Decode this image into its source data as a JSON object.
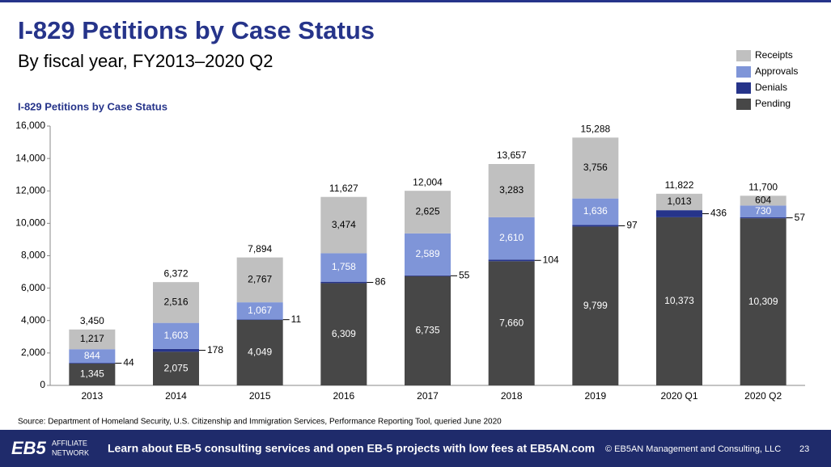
{
  "slide": {
    "title": "I-829 Petitions by Case Status",
    "subtitle": "By fiscal year, FY2013–2020 Q2",
    "source": "Source: Department of Homeland Security, U.S. Citizenship and Immigration Services, Performance Reporting Tool, queried June 2020",
    "logo_main": "EB5",
    "logo_top": "AFFILIATE",
    "logo_bottom": "NETWORK",
    "footer_text": "Learn about EB-5 consulting services and open EB-5 projects with low fees at EB5AN.com",
    "copyright": "© EB5AN Management and Consulting, LLC",
    "page_number": "23"
  },
  "chart_data": {
    "type": "stacked_bar",
    "title": "I-829 Petitions by Case Status",
    "categories": [
      "2013",
      "2014",
      "2015",
      "2016",
      "2017",
      "2018",
      "2019",
      "2020 Q1",
      "2020 Q2"
    ],
    "series": [
      {
        "name": "Receipts",
        "color": "#c0c0c0",
        "values": [
          1217,
          2516,
          2767,
          3474,
          2625,
          3283,
          3756,
          1013,
          604
        ],
        "value_labels": [
          "1,217",
          "2,516",
          "2,767",
          "3,474",
          "2,625",
          "3,283",
          "3,756",
          "1,013",
          "604"
        ]
      },
      {
        "name": "Approvals",
        "color": "#7f95d8",
        "values": [
          844,
          1603,
          1067,
          1758,
          2589,
          2610,
          1636,
          null,
          730
        ],
        "value_labels": [
          "844",
          "1,603",
          "1,067",
          "1,758",
          "2,589",
          "2,610",
          "1,636",
          null,
          "730"
        ]
      },
      {
        "name": "Denials",
        "color": "#26348a",
        "values": [
          44,
          178,
          11,
          86,
          55,
          104,
          97,
          436,
          57
        ]
      },
      {
        "name": "Pending",
        "color": "#474747",
        "values": [
          1345,
          2075,
          4049,
          6309,
          6735,
          7660,
          9799,
          10373,
          10309
        ],
        "value_labels": [
          "1,345",
          "2,075",
          "4,049",
          "6,309",
          "6,735",
          "7,660",
          "9,799",
          "10,373",
          "10,309"
        ]
      }
    ],
    "totals": {
      "values": [
        3450,
        6372,
        7894,
        11627,
        12004,
        13657,
        15288,
        11822,
        11700
      ],
      "value_labels": [
        "3,450",
        "6,372",
        "7,894",
        "11,627",
        "12,004",
        "13,657",
        "15,288",
        "11,822",
        "11,700"
      ]
    },
    "ylim": [
      0,
      16000
    ],
    "yticks": [
      0,
      {
        "value": 2000,
        "label": "2,000"
      },
      {
        "value": 4000,
        "label": "4,000"
      },
      {
        "value": 6000,
        "label": "6,000"
      },
      {
        "value": 8000,
        "label": "8,000"
      },
      {
        "value": 10000,
        "label": "10,000"
      },
      {
        "value": 12000,
        "label": "12,000"
      },
      {
        "value": 14000,
        "label": "14,000"
      },
      {
        "value": 16000,
        "label": "16,000"
      }
    ],
    "legend": "top-right"
  }
}
